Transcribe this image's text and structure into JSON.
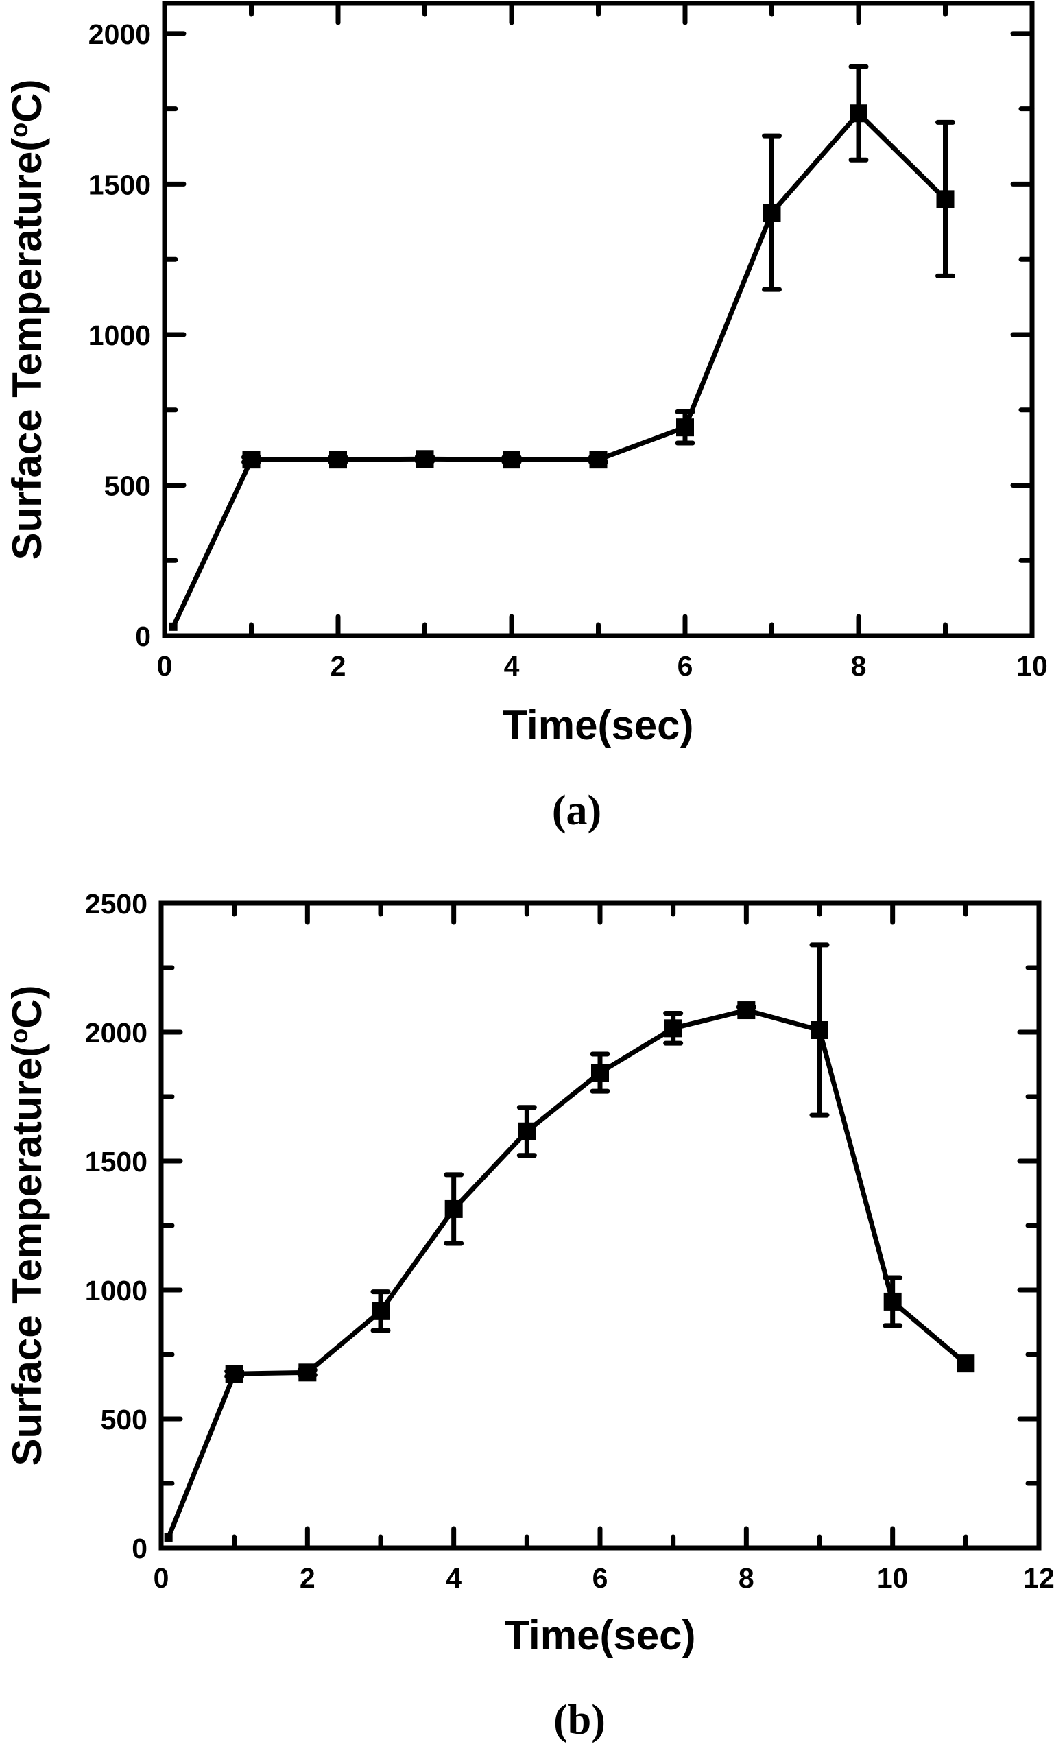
{
  "chart_data": [
    {
      "id": "a",
      "type": "line",
      "caption": "(a)",
      "title": "",
      "xlabel": "Time(sec)",
      "ylabel": "Surface Temperature(",
      "ylabel_degree": "o",
      "ylabel_unit": "C)",
      "xlim": [
        0,
        10
      ],
      "ylim": [
        0,
        2100
      ],
      "xticks": [
        0,
        2,
        4,
        6,
        8,
        10
      ],
      "xtick_labels": [
        "0",
        "2",
        "4",
        "6",
        "8",
        "10"
      ],
      "xminor": [
        1,
        3,
        5,
        7,
        9
      ],
      "yticks": [
        0,
        500,
        1000,
        1500,
        2000
      ],
      "ytick_labels": [
        "0",
        "500",
        "1000",
        "1500",
        "2000"
      ],
      "yminor": [
        250,
        750,
        1250,
        1750
      ],
      "grid": false,
      "legend": "none",
      "marker": "square",
      "color": "#000000",
      "series": [
        {
          "name": "Surface Temperature",
          "x": [
            0.1,
            1,
            2,
            3,
            4,
            5,
            6,
            7,
            8,
            9
          ],
          "y": [
            30,
            585,
            585,
            587,
            585,
            585,
            692,
            1405,
            1735,
            1450
          ],
          "yerr": [
            0,
            8,
            8,
            8,
            8,
            8,
            52,
            255,
            155,
            255
          ]
        }
      ]
    },
    {
      "id": "b",
      "type": "line",
      "caption": "(b)",
      "title": "",
      "xlabel": "Time(sec)",
      "ylabel": "Surface Temperature(",
      "ylabel_degree": "o",
      "ylabel_unit": "C)",
      "xlim": [
        0,
        12
      ],
      "ylim": [
        0,
        2500
      ],
      "xticks": [
        0,
        2,
        4,
        6,
        8,
        10,
        12
      ],
      "xtick_labels": [
        "0",
        "2",
        "4",
        "6",
        "8",
        "10",
        "12"
      ],
      "xminor": [
        1,
        3,
        5,
        7,
        9,
        11
      ],
      "yticks": [
        0,
        500,
        1000,
        1500,
        2000,
        2500
      ],
      "ytick_labels": [
        "0",
        "500",
        "1000",
        "1500",
        "2000",
        "2500"
      ],
      "yminor": [
        250,
        750,
        1250,
        1750,
        2250
      ],
      "grid": false,
      "legend": "none",
      "marker": "square",
      "color": "#000000",
      "series": [
        {
          "name": "Surface Temperature",
          "x": [
            0.1,
            1,
            2,
            3,
            4,
            5,
            6,
            7,
            8,
            9,
            10,
            11
          ],
          "y": [
            40,
            675,
            680,
            918,
            1314,
            1615,
            1843,
            2015,
            2085,
            2008,
            955,
            715
          ],
          "yerr": [
            0,
            10,
            10,
            75,
            133,
            93,
            72,
            58,
            12,
            330,
            93,
            0
          ]
        }
      ]
    }
  ]
}
